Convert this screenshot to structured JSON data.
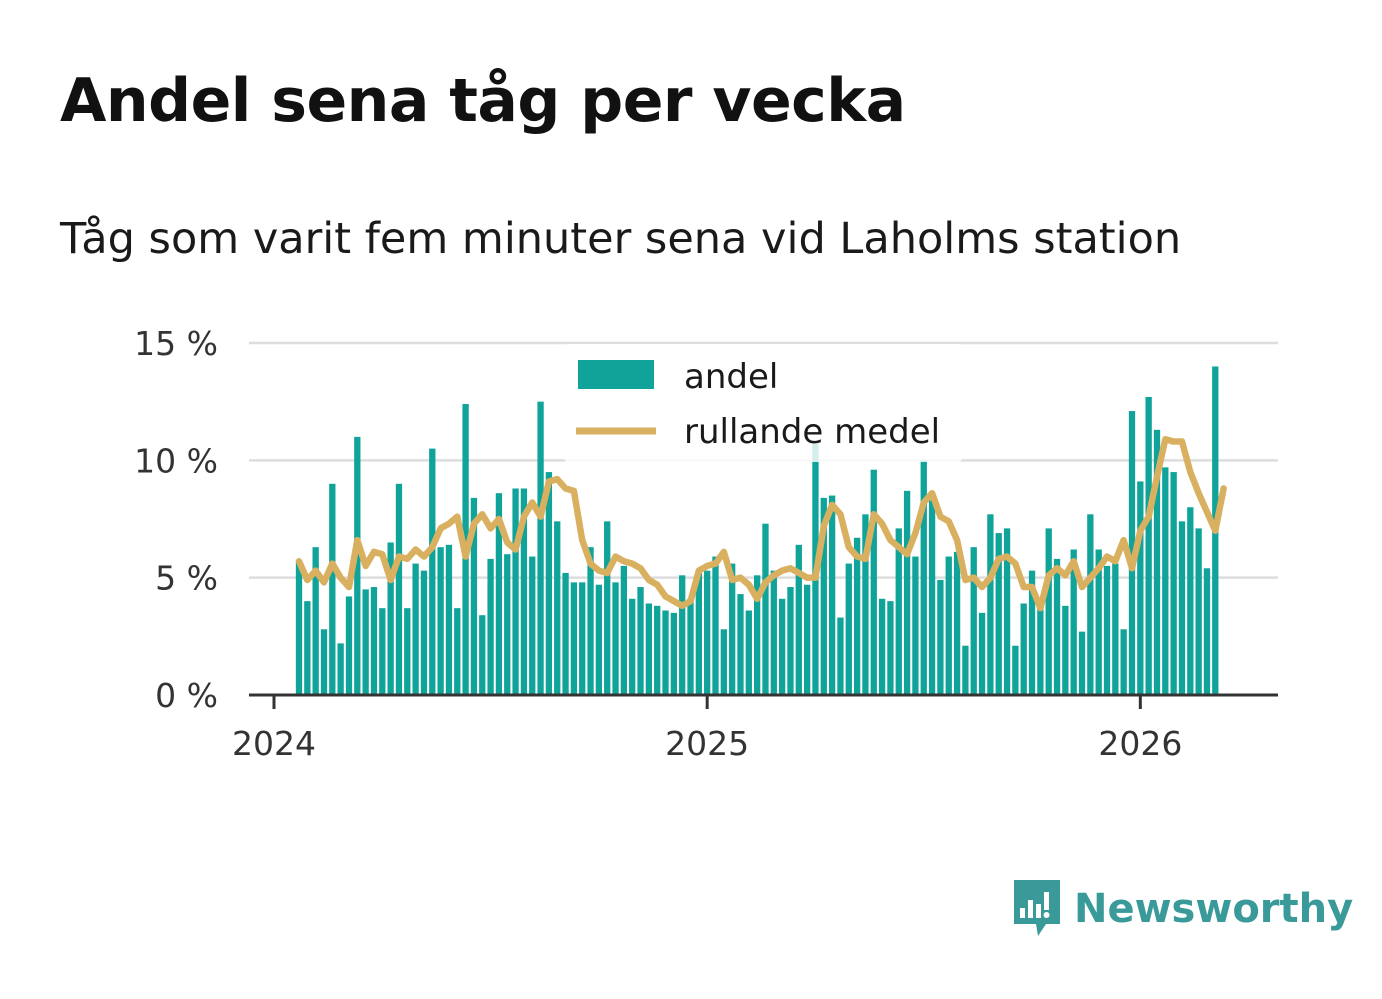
{
  "title": "Andel sena tåg per vecka",
  "subtitle": "Tåg som varit fem minuter sena vid Laholms station",
  "brand": {
    "name": "Newsworthy",
    "color": "#3a9a9a"
  },
  "colors": {
    "bar": "#0fa39a",
    "line": "#d9b060",
    "grid": "#dddddd",
    "axis": "#333333"
  },
  "chart_data": {
    "type": "bar",
    "title": "Andel sena tåg per vecka",
    "xlabel": "",
    "ylabel": "",
    "ylim": [
      0,
      15
    ],
    "y_ticks": [
      {
        "value": 0,
        "label": "0 %"
      },
      {
        "value": 5,
        "label": "5 %"
      },
      {
        "value": 10,
        "label": "10 %"
      },
      {
        "value": 15,
        "label": "15 %"
      }
    ],
    "x_ticks": [
      {
        "week_index": -3,
        "label": "2024"
      },
      {
        "week_index": 49,
        "label": "2025"
      },
      {
        "week_index": 101,
        "label": "2026"
      }
    ],
    "legend": {
      "position": "top-center",
      "entries": [
        {
          "name": "andel",
          "kind": "bar"
        },
        {
          "name": "rullande medel",
          "kind": "line"
        }
      ]
    },
    "series": [
      {
        "name": "andel",
        "kind": "bar",
        "values": [
          5.7,
          4.0,
          6.3,
          2.8,
          9.0,
          2.2,
          4.2,
          11.0,
          4.5,
          4.6,
          3.7,
          6.5,
          9.0,
          3.7,
          5.6,
          5.3,
          10.5,
          6.3,
          6.4,
          3.7,
          12.4,
          8.4,
          3.4,
          5.8,
          8.6,
          6.0,
          8.8,
          8.8,
          5.9,
          12.5,
          9.5,
          7.4,
          5.2,
          4.8,
          4.8,
          6.3,
          4.7,
          7.4,
          4.8,
          5.5,
          4.1,
          4.6,
          3.9,
          3.8,
          3.6,
          3.5,
          5.1,
          4.1,
          5.2,
          5.3,
          5.9,
          2.8,
          5.6,
          4.3,
          3.6,
          5.1,
          7.3,
          5.3,
          4.1,
          4.6,
          6.4,
          4.7,
          10.7,
          8.4,
          8.5,
          3.3,
          5.6,
          6.7,
          7.7,
          9.6,
          4.1,
          4.0,
          7.1,
          8.7,
          5.9,
          10.0,
          8.3,
          4.9,
          5.9,
          6.1,
          2.1,
          6.3,
          3.5,
          7.7,
          6.9,
          7.1,
          2.1,
          3.9,
          5.3,
          3.9,
          7.1,
          5.8,
          3.8,
          6.2,
          2.7,
          7.7,
          6.2,
          5.5,
          5.6,
          2.8,
          12.1,
          9.1,
          12.7,
          11.3,
          9.7,
          9.5,
          7.4,
          8.0,
          7.1,
          5.4,
          14.0
        ]
      },
      {
        "name": "rullande medel",
        "kind": "line",
        "values": [
          5.7,
          4.9,
          5.3,
          4.8,
          5.6,
          5.0,
          4.6,
          6.6,
          5.5,
          6.1,
          6.0,
          4.9,
          5.9,
          5.8,
          6.2,
          5.9,
          6.3,
          7.1,
          7.3,
          7.6,
          5.9,
          7.3,
          7.7,
          7.1,
          7.5,
          6.5,
          6.2,
          7.6,
          8.2,
          7.6,
          9.1,
          9.2,
          8.8,
          8.7,
          6.6,
          5.6,
          5.3,
          5.2,
          5.9,
          5.7,
          5.6,
          5.4,
          4.9,
          4.7,
          4.2,
          4.0,
          3.8,
          4.0,
          5.3,
          5.5,
          5.6,
          6.1,
          4.9,
          5.0,
          4.7,
          4.1,
          4.8,
          5.1,
          5.3,
          5.4,
          5.2,
          5.0,
          5.0,
          7.2,
          8.1,
          7.7,
          6.3,
          5.9,
          5.8,
          7.7,
          7.3,
          6.6,
          6.3,
          6.0,
          6.9,
          8.2,
          8.6,
          7.6,
          7.4,
          6.6,
          4.9,
          5.0,
          4.6,
          5.0,
          5.8,
          5.9,
          5.6,
          4.6,
          4.6,
          3.7,
          5.1,
          5.4,
          5.1,
          5.7,
          4.6,
          5.0,
          5.4,
          5.9,
          5.7,
          6.6,
          5.4,
          7.0,
          7.6,
          9.3,
          10.9,
          10.8,
          10.8,
          9.5,
          8.6,
          7.8,
          7.0,
          8.8
        ]
      }
    ]
  }
}
